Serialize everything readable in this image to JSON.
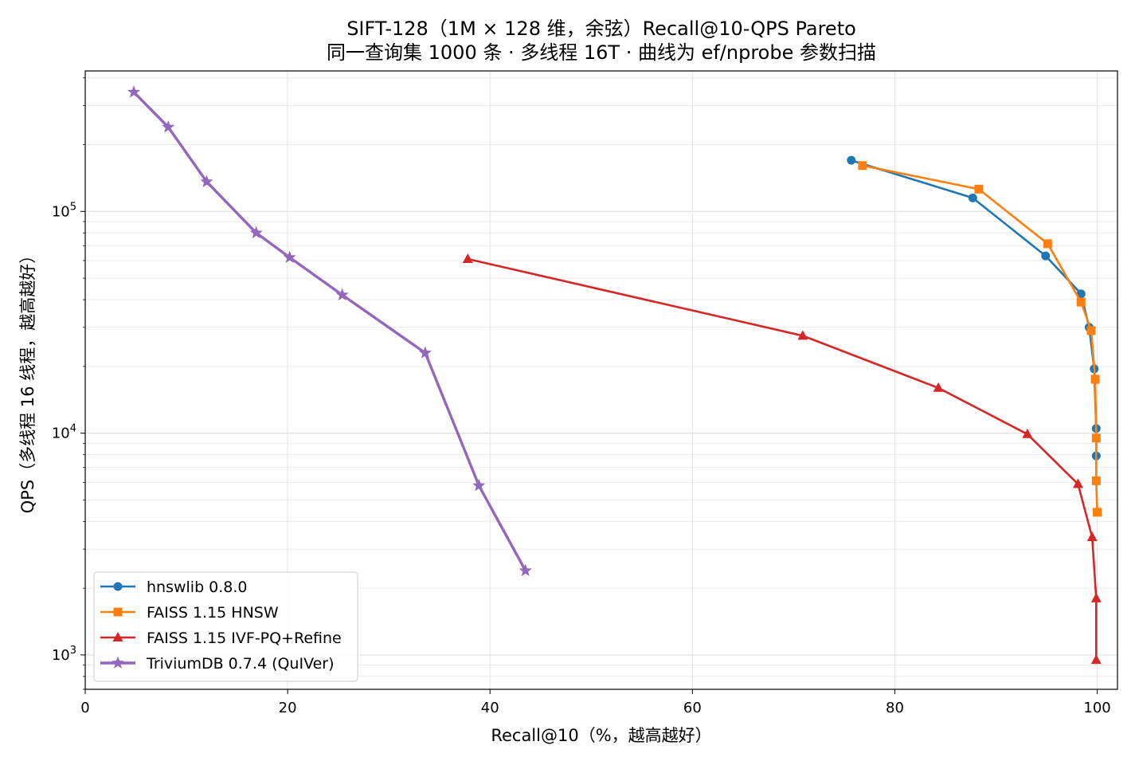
{
  "chart_data": {
    "type": "line",
    "title": "SIFT-128（1M × 128 维，余弦）Recall@10-QPS Pareto",
    "subtitle": "同一查询集 1000 条 · 多线程 16T · 曲线为 ef/nprobe 参数扫描",
    "xlabel": "Recall@10（%，越高越好）",
    "ylabel": "QPS（多线程 16 线程，越高越好）",
    "xlim": [
      0,
      102
    ],
    "ylim": [
      700,
      430000
    ],
    "y_scale": "log",
    "x_ticks": [
      0,
      20,
      40,
      60,
      80,
      100
    ],
    "x_tick_labels": [
      "0",
      "20",
      "40",
      "60",
      "80",
      "100"
    ],
    "y_ticks": [
      1000,
      10000,
      100000
    ],
    "y_tick_labels": [
      {
        "base": "10",
        "exp": "3"
      },
      {
        "base": "10",
        "exp": "4"
      },
      {
        "base": "10",
        "exp": "5"
      }
    ],
    "grid": true,
    "legend_position": "lower-left",
    "series": [
      {
        "name": "hnswlib 0.8.0",
        "color": "#1f77b4",
        "marker": "circle",
        "x": [
          75.7,
          87.7,
          94.9,
          98.4,
          99.2,
          99.7,
          99.9,
          99.9
        ],
        "y": [
          170000,
          115000,
          63000,
          42500,
          30000,
          19500,
          10500,
          7900
        ]
      },
      {
        "name": "FAISS 1.15 HNSW",
        "color": "#ff7f0e",
        "marker": "square",
        "x": [
          76.8,
          88.3,
          95.1,
          98.4,
          99.4,
          99.8,
          99.9,
          99.9,
          100.0
        ],
        "y": [
          161000,
          126000,
          71500,
          39000,
          29000,
          17500,
          9500,
          6100,
          4400
        ]
      },
      {
        "name": "FAISS 1.15 IVF-PQ+Refine",
        "color": "#d62728",
        "marker": "triangle",
        "x": [
          37.8,
          70.9,
          84.3,
          93.1,
          98.1,
          99.5,
          99.9,
          99.9
        ],
        "y": [
          61000,
          27500,
          16000,
          9900,
          5900,
          3400,
          1800,
          950
        ]
      },
      {
        "name": "TriviumDB 0.7.4 (QuIVer)",
        "color": "#9467bd",
        "marker": "star",
        "x": [
          4.8,
          8.2,
          12.0,
          16.9,
          20.2,
          25.4,
          33.6,
          38.9,
          43.5
        ],
        "y": [
          345000,
          240000,
          136000,
          80000,
          62000,
          42000,
          23000,
          5800,
          2400
        ]
      }
    ]
  }
}
